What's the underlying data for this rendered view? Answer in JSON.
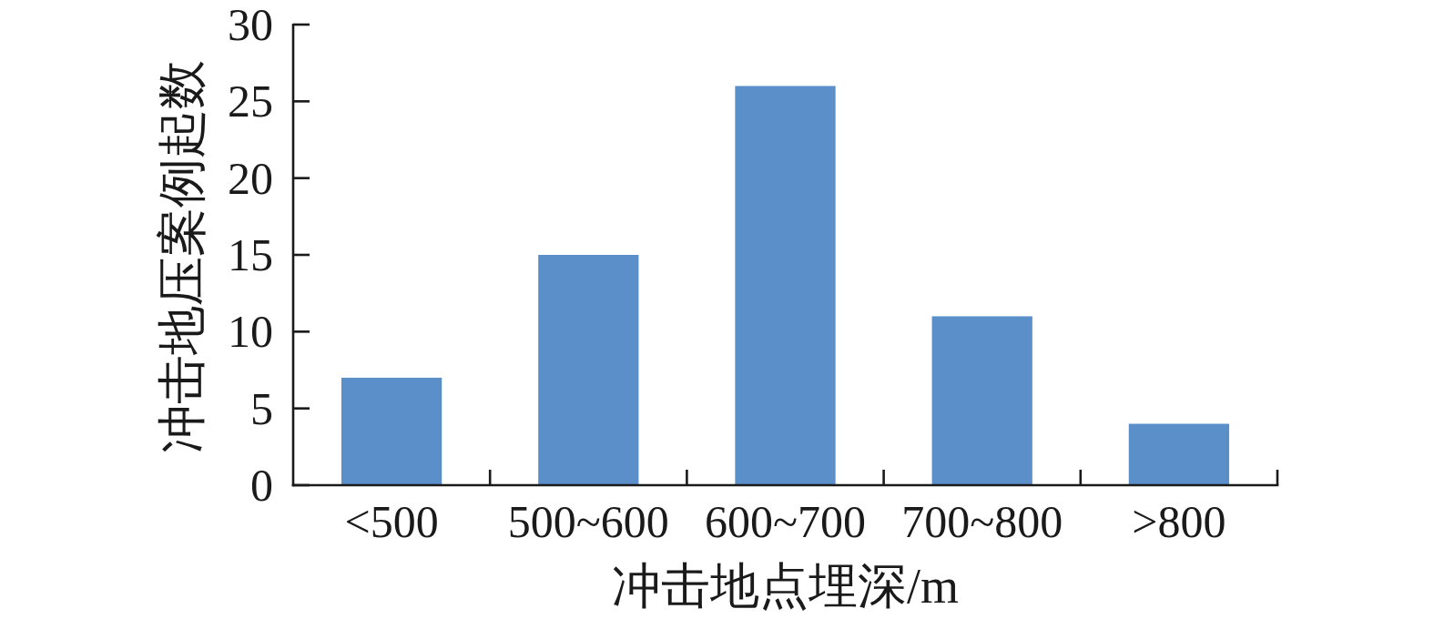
{
  "chart_data": {
    "type": "bar",
    "xlabel": "冲击地点埋深/m",
    "ylabel": "冲击地压案例起数",
    "categories": [
      "<500",
      "500~600",
      "600~700",
      "700~800",
      ">800"
    ],
    "values": [
      7,
      15,
      26,
      11,
      4
    ],
    "color": "#5b8fca",
    "ylim": [
      0,
      30
    ],
    "yticks": [
      0,
      5,
      10,
      15,
      20,
      25,
      30
    ]
  }
}
